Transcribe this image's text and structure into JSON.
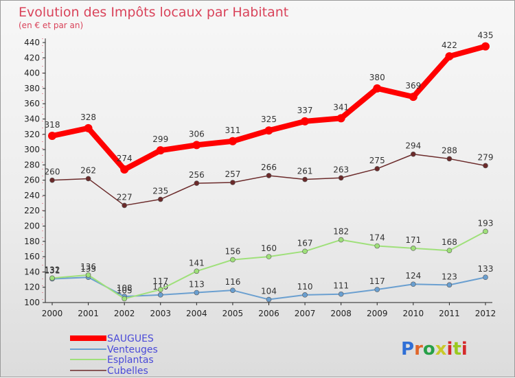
{
  "chart_data": {
    "type": "line",
    "title": "Evolution des Impôts locaux par Habitant",
    "subtitle": "(en € et par an)",
    "xlabel": "",
    "ylabel": "",
    "x": [
      "2000",
      "2001",
      "2002",
      "2003",
      "2004",
      "2005",
      "2006",
      "2007",
      "2008",
      "2009",
      "2010",
      "2011",
      "2012"
    ],
    "ylim": [
      100,
      440
    ],
    "yticks": [
      100,
      120,
      140,
      160,
      180,
      200,
      220,
      240,
      260,
      280,
      300,
      320,
      340,
      360,
      380,
      400,
      420,
      440
    ],
    "grid": false,
    "legend_position": "bottom-left",
    "series": [
      {
        "name": "SAUGUES",
        "color": "#ff0000",
        "values": [
          318,
          328,
          274,
          299,
          306,
          311,
          325,
          337,
          341,
          380,
          369,
          422,
          435
        ]
      },
      {
        "name": "Venteuges",
        "color": "#6a9fd0",
        "values": [
          131,
          133,
          108,
          110,
          113,
          116,
          104,
          110,
          111,
          117,
          124,
          123,
          133
        ]
      },
      {
        "name": "Esplantas",
        "color": "#9fe07a",
        "values": [
          132,
          136,
          105,
          117,
          141,
          156,
          160,
          167,
          182,
          174,
          171,
          168,
          193
        ]
      },
      {
        "name": "Cubelles",
        "color": "#6b2a2a",
        "values": [
          260,
          262,
          227,
          235,
          256,
          257,
          266,
          261,
          263,
          275,
          294,
          288,
          279
        ]
      }
    ]
  },
  "brand": {
    "letters": [
      "P",
      "r",
      "o",
      "x",
      "i",
      "t",
      "i"
    ],
    "colors": [
      "#2f6fd6",
      "#e0662a",
      "#27a048",
      "#c9c92a",
      "#d42a2a",
      "#9ac91f",
      "#d42a2a"
    ]
  }
}
